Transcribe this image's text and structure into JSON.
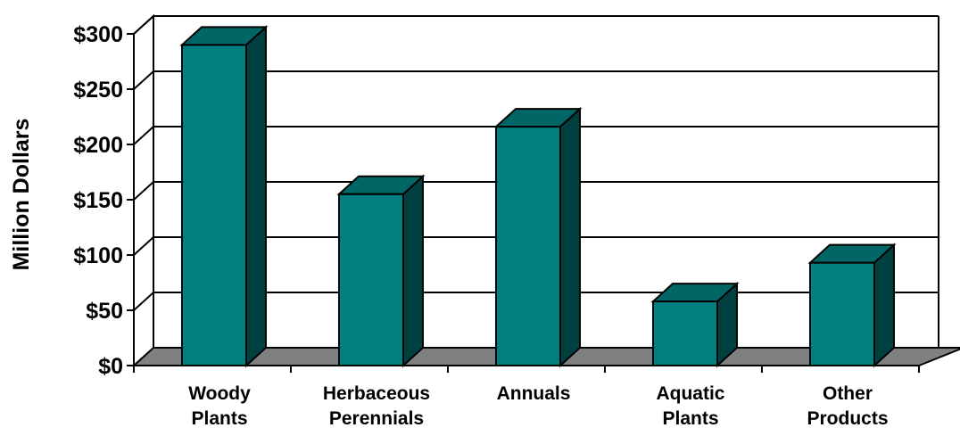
{
  "chart_data": {
    "type": "bar",
    "style": "3d",
    "categories": [
      [
        "Woody",
        "Plants"
      ],
      [
        "Herbaceous",
        "Perennials"
      ],
      [
        "Annuals"
      ],
      [
        "Aquatic",
        "Plants"
      ],
      [
        "Other",
        "Products"
      ]
    ],
    "values": [
      290,
      155,
      216,
      58,
      93
    ],
    "ylabel": "Million Dollars",
    "ylim": [
      0,
      300
    ],
    "yticks": [
      0,
      50,
      100,
      150,
      200,
      250,
      300
    ],
    "ytick_labels": [
      "$0",
      "$50",
      "$100",
      "$150",
      "$200",
      "$250",
      "$300"
    ],
    "grid": true,
    "legend": "none",
    "colors": {
      "bar_front": "#008080",
      "bar_top": "#006666",
      "bar_side": "#004040",
      "floor": "#808080"
    }
  }
}
